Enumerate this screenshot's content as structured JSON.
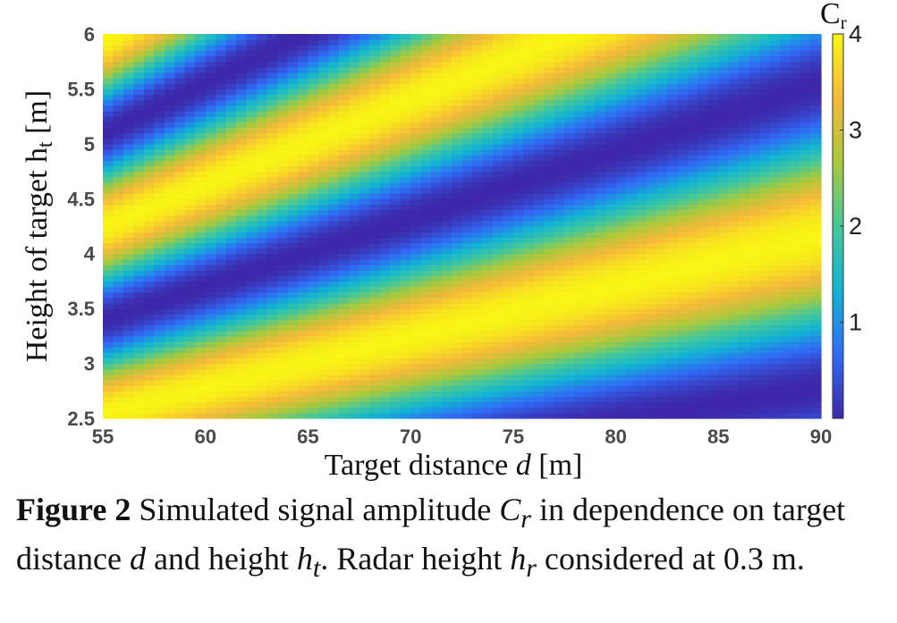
{
  "chart_data": {
    "type": "heatmap",
    "x": {
      "label_prefix": "Target distance ",
      "label_var": "d",
      "label_suffix": " [m]",
      "range": [
        55,
        90
      ],
      "ticks": [
        55,
        60,
        65,
        70,
        75,
        80,
        85,
        90
      ]
    },
    "y": {
      "label_prefix": "Height of target h",
      "label_sub": "t",
      "label_suffix": " [m]",
      "range": [
        2.5,
        6
      ],
      "ticks": [
        2.5,
        3,
        3.5,
        4,
        4.5,
        5,
        5.5,
        6
      ]
    },
    "colorbar": {
      "label": "C",
      "label_sub": "r",
      "range": [
        0,
        4
      ],
      "ticks": [
        1,
        2,
        3,
        4
      ]
    },
    "radar_height_m": 0.3,
    "model": "two-ray interference amplitude",
    "colormap": [
      "#3e26a8",
      "#2f6bf5",
      "#12b3d4",
      "#44c89a",
      "#a9c93b",
      "#f5b93a",
      "#f9f514"
    ],
    "grid": false
  },
  "caption": {
    "fig": "Figure 2",
    "t1": " Simulated signal amplitude ",
    "v1": "C",
    "v1sub": "r",
    "t2": " in dependence on target distance ",
    "v2": "d",
    "t3": " and height ",
    "v3": "h",
    "v3sub": "t",
    "t4": ". Radar height ",
    "v4": "h",
    "v4sub": "r",
    "t5": " considered at 0.3 m."
  }
}
